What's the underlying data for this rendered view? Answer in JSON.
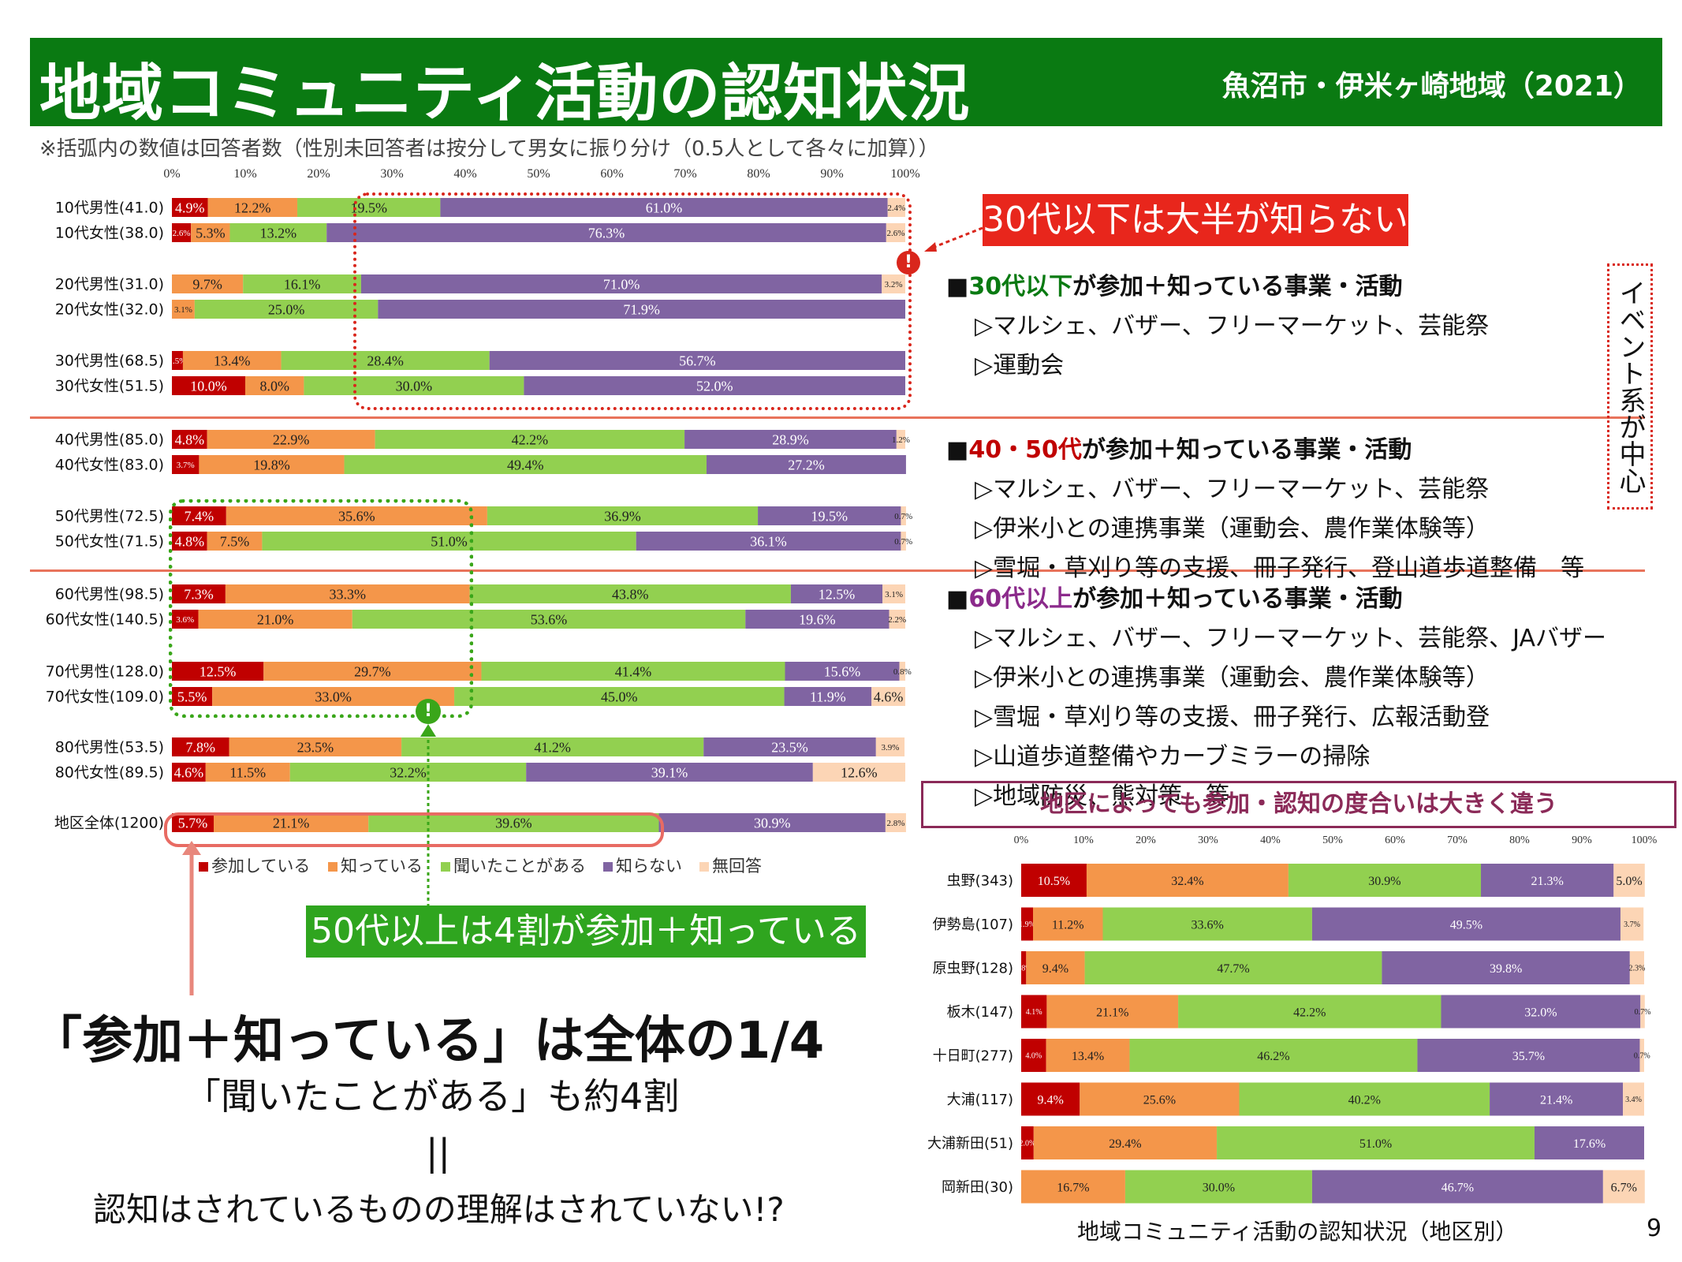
{
  "header": {
    "title": "地域コミュニティ活動の認知状況",
    "region": "魚沼市・伊米ヶ崎地域（2021）"
  },
  "note": "※括弧内の数値は回答者数（性別未回答者は按分して男女に振り分け（0.5人として各々に加算））",
  "colors": {
    "参加している": "#c00000",
    "知っている": "#f4964a",
    "聞いたことがある": "#92d050",
    "知らない": "#8064a2",
    "無回答": "#fcd5b5"
  },
  "legend": [
    "参加している",
    "知っている",
    "聞いたことがある",
    "知らない",
    "無回答"
  ],
  "callouts": {
    "under30": "30代以下は大半が知らない",
    "over50": "50代以上は4割が参加＋知っている",
    "district": "地区によっても参加・認知の度合いは大きく違う",
    "event": "イベント系が中心"
  },
  "sections": [
    {
      "title": "■30代以下が参加＋知っている事業・活動",
      "items": [
        "▷マルシェ、バザー、フリーマーケット、芸能祭",
        "▷運動会"
      ]
    },
    {
      "title": "■40・50代が参加＋知っている事業・活動",
      "items": [
        "▷マルシェ、バザー、フリーマーケット、芸能祭",
        "▷伊米小との連携事業（運動会、農作業体験等）",
        "▷雪堀・草刈り等の支援、冊子発行、登山道歩道整備　等"
      ]
    },
    {
      "title": "■60代以上が参加＋知っている事業・活動",
      "items": [
        "▷マルシェ、バザー、フリーマーケット、芸能祭、JAバザー",
        "▷伊米小との連携事業（運動会、農作業体験等）",
        "▷雪堀・草刈り等の支援、冊子発行、広報活動登",
        "▷山道歩道整備やカーブミラーの掃除",
        "▷地域防災、熊対策　等"
      ]
    }
  ],
  "conclusion": {
    "line1": "「参加＋知っている」は全体の1/4",
    "line2": "「聞いたことがある」も約4割",
    "line3": "||",
    "line4": "認知はされているものの理解はされていない!?"
  },
  "footer": {
    "caption": "地域コミュニティ活動の認知状況（地区別）",
    "page": "9"
  },
  "chart_data": [
    {
      "type": "bar",
      "orientation": "horizontal-stacked-100",
      "xlim": [
        0,
        100
      ],
      "xticks": [
        "0%",
        "10%",
        "20%",
        "30%",
        "40%",
        "50%",
        "60%",
        "70%",
        "80%",
        "90%",
        "100%"
      ],
      "series_names": [
        "参加している",
        "知っている",
        "聞いたことがある",
        "知らない",
        "無回答"
      ],
      "categories": [
        "10代男性(41.0)",
        "10代女性(38.0)",
        "20代男性(31.0)",
        "20代女性(32.0)",
        "30代男性(68.5)",
        "30代女性(51.5)",
        "40代男性(85.0)",
        "40代女性(83.0)",
        "50代男性(72.5)",
        "50代女性(71.5)",
        "60代男性(98.5)",
        "60代女性(140.5)",
        "70代男性(128.0)",
        "70代女性(109.0)",
        "80代男性(53.5)",
        "80代女性(89.5)",
        "地区全体(1200)"
      ],
      "rows": [
        [
          4.9,
          12.2,
          19.5,
          61.0,
          2.4
        ],
        [
          2.6,
          5.3,
          13.2,
          76.3,
          2.6
        ],
        [
          0.0,
          9.7,
          16.1,
          71.0,
          3.2
        ],
        [
          0.0,
          3.1,
          25.0,
          71.9,
          0.0
        ],
        [
          1.5,
          13.4,
          28.4,
          56.7,
          0.0
        ],
        [
          10.0,
          8.0,
          30.0,
          52.0,
          0.0
        ],
        [
          4.8,
          22.9,
          42.2,
          28.9,
          1.2
        ],
        [
          3.7,
          19.8,
          49.4,
          27.2,
          0.0
        ],
        [
          7.4,
          35.6,
          36.9,
          19.5,
          0.7
        ],
        [
          4.8,
          7.5,
          51.0,
          36.1,
          0.7
        ],
        [
          7.3,
          33.3,
          43.8,
          12.5,
          3.1
        ],
        [
          3.6,
          21.0,
          53.6,
          19.6,
          2.2
        ],
        [
          12.5,
          29.7,
          41.4,
          15.6,
          0.8
        ],
        [
          5.5,
          33.0,
          45.0,
          11.9,
          4.6
        ],
        [
          7.8,
          23.5,
          41.2,
          23.5,
          3.9
        ],
        [
          4.6,
          11.5,
          32.2,
          39.1,
          12.6
        ],
        [
          5.7,
          21.1,
          39.6,
          30.9,
          2.8
        ]
      ]
    },
    {
      "type": "bar",
      "orientation": "horizontal-stacked-100",
      "title": "地域コミュニティ活動の認知状況（地区別）",
      "xlim": [
        0,
        100
      ],
      "xticks": [
        "0%",
        "10%",
        "20%",
        "30%",
        "40%",
        "50%",
        "60%",
        "70%",
        "80%",
        "90%",
        "100%"
      ],
      "series_names": [
        "参加している",
        "知っている",
        "聞いたことがある",
        "知らない",
        "無回答"
      ],
      "categories": [
        "虫野(343)",
        "伊勢島(107)",
        "原虫野(128)",
        "板木(147)",
        "十日町(277)",
        "大浦(117)",
        "大浦新田(51)",
        "岡新田(30)"
      ],
      "rows": [
        [
          10.5,
          32.4,
          30.9,
          21.3,
          5.0
        ],
        [
          1.9,
          11.2,
          33.6,
          49.5,
          3.7
        ],
        [
          0.8,
          9.4,
          47.7,
          39.8,
          2.3
        ],
        [
          4.1,
          21.1,
          42.2,
          32.0,
          0.7
        ],
        [
          4.0,
          13.4,
          46.2,
          35.7,
          0.7
        ],
        [
          9.4,
          25.6,
          40.2,
          21.4,
          3.4
        ],
        [
          2.0,
          29.4,
          51.0,
          17.6,
          0.0
        ],
        [
          0.0,
          16.7,
          30.0,
          46.7,
          6.7
        ]
      ]
    }
  ]
}
